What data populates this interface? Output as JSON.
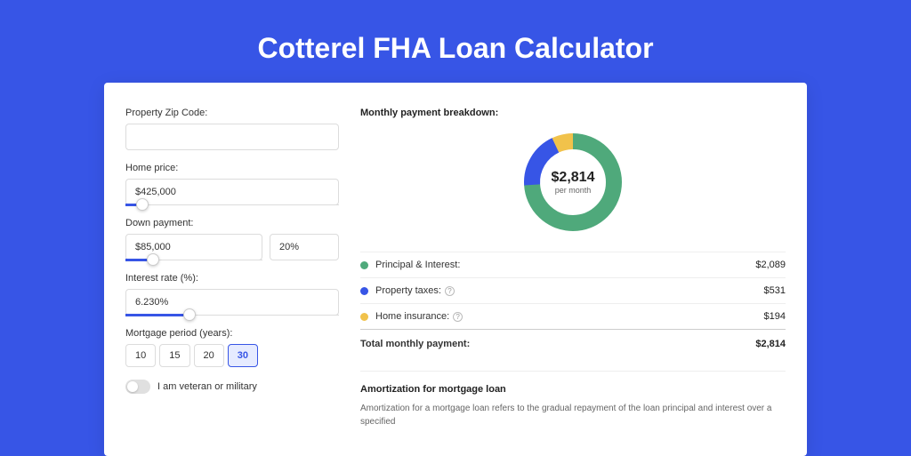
{
  "page": {
    "title": "Cotterel FHA Loan Calculator",
    "background_color": "#3755e6"
  },
  "form": {
    "zip_label": "Property Zip Code:",
    "zip_value": "",
    "home_price_label": "Home price:",
    "home_price_value": "$425,000",
    "home_price_slider_pct": 8,
    "down_payment_label": "Down payment:",
    "down_payment_value": "$85,000",
    "down_payment_pct_value": "20%",
    "down_payment_slider_pct": 20,
    "interest_label": "Interest rate (%):",
    "interest_value": "6.230%",
    "interest_slider_pct": 30,
    "period_label": "Mortgage period (years):",
    "periods": [
      {
        "label": "10",
        "selected": false
      },
      {
        "label": "15",
        "selected": false
      },
      {
        "label": "20",
        "selected": false
      },
      {
        "label": "30",
        "selected": true
      }
    ],
    "veteran_label": "I am veteran or military"
  },
  "breakdown": {
    "title": "Monthly payment breakdown:",
    "center_amount": "$2,814",
    "center_sub": "per month",
    "donut": {
      "segments": [
        {
          "color": "#4fa97b",
          "pct": 74
        },
        {
          "color": "#3755e6",
          "pct": 19
        },
        {
          "color": "#f1c24b",
          "pct": 7
        }
      ],
      "stroke_width": 18
    },
    "rows": [
      {
        "dot_color": "#4fa97b",
        "label": "Principal & Interest:",
        "help": false,
        "value": "$2,089"
      },
      {
        "dot_color": "#3755e6",
        "label": "Property taxes:",
        "help": true,
        "value": "$531"
      },
      {
        "dot_color": "#f1c24b",
        "label": "Home insurance:",
        "help": true,
        "value": "$194"
      }
    ],
    "total_label": "Total monthly payment:",
    "total_value": "$2,814"
  },
  "amortization": {
    "title": "Amortization for mortgage loan",
    "text": "Amortization for a mortgage loan refers to the gradual repayment of the loan principal and interest over a specified"
  }
}
